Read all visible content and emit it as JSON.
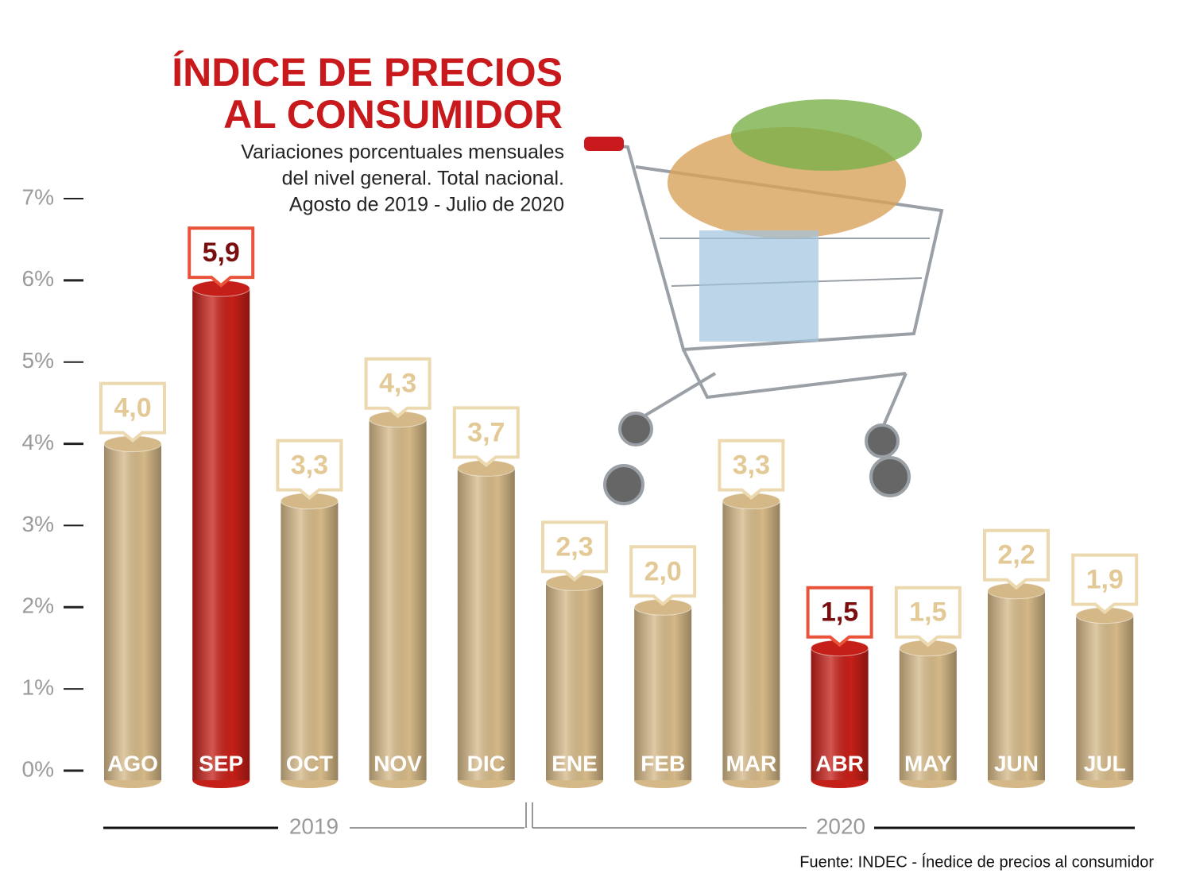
{
  "chart_data": {
    "type": "bar",
    "title": [
      "ÍNDICE DE PRECIOS",
      "AL CONSUMIDOR"
    ],
    "subtitle": [
      "Variaciones porcentuales mensuales",
      "del nivel general. Total nacional.",
      "Agosto de 2019 - Julio de 2020"
    ],
    "categories": [
      "AGO",
      "SEP",
      "OCT",
      "NOV",
      "DIC",
      "ENE",
      "FEB",
      "MAR",
      "ABR",
      "MAY",
      "JUN",
      "JUL"
    ],
    "values": [
      4.0,
      5.9,
      3.3,
      4.3,
      3.7,
      2.3,
      2.0,
      3.3,
      1.5,
      1.5,
      2.2,
      1.9
    ],
    "value_labels": [
      "4,0",
      "5,9",
      "3,3",
      "4,3",
      "3,7",
      "2,3",
      "2,0",
      "3,3",
      "1,5",
      "1,5",
      "2,2",
      "1,9"
    ],
    "colors": [
      "#d4b887",
      "#c41f18",
      "#d4b887",
      "#d4b887",
      "#d4b887",
      "#d4b887",
      "#d4b887",
      "#d4b887",
      "#c41f18",
      "#d4b887",
      "#d4b887",
      "#d4b887"
    ],
    "label_colors": [
      "#e3c995",
      "#7a0d0d",
      "#e3c995",
      "#e3c995",
      "#e3c995",
      "#e3c995",
      "#e3c995",
      "#e3c995",
      "#7a0d0d",
      "#e3c995",
      "#e3c995",
      "#e3c995"
    ],
    "box_colors": [
      "#ecd9b0",
      "#e8533a",
      "#ecd9b0",
      "#ecd9b0",
      "#ecd9b0",
      "#ecd9b0",
      "#ecd9b0",
      "#ecd9b0",
      "#e8533a",
      "#ecd9b0",
      "#ecd9b0",
      "#ecd9b0"
    ],
    "ylim": [
      0,
      7
    ],
    "yticks": [
      {
        "value": 0,
        "label": "0%"
      },
      {
        "value": 1,
        "label": "1%"
      },
      {
        "value": 2,
        "label": "2%"
      },
      {
        "value": 3,
        "label": "3%"
      },
      {
        "value": 4,
        "label": "4%"
      },
      {
        "value": 5,
        "label": "5%"
      },
      {
        "value": 6,
        "label": "6%"
      },
      {
        "value": 7,
        "label": "7%"
      }
    ],
    "year_labels": [
      "2019",
      "2020"
    ],
    "source": "Fuente: INDEC - Ínedice de precios al consumidor"
  }
}
